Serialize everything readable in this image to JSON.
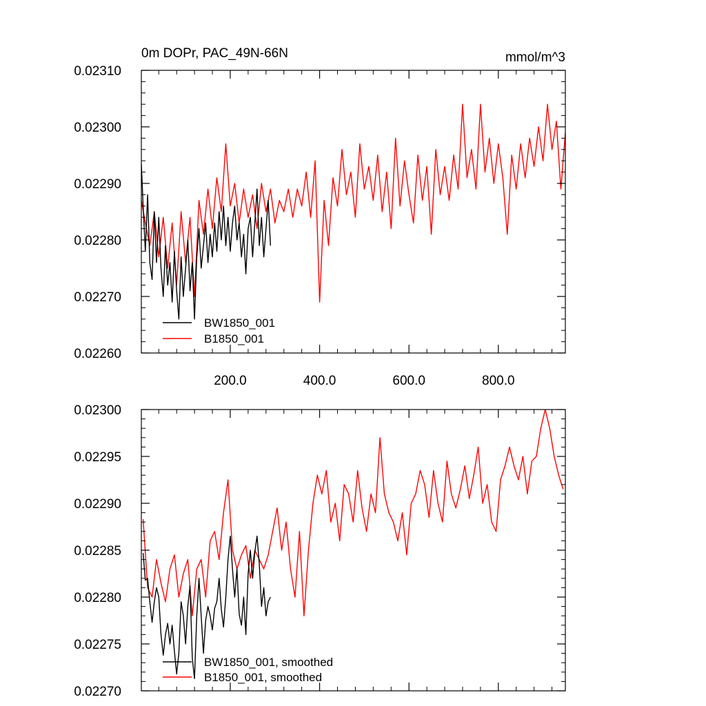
{
  "chart_data": [
    {
      "type": "line",
      "title": "0m DOPr, PAC_49N-66N",
      "units": "mmol/m^3",
      "xlim": [
        1,
        950
      ],
      "ylim": [
        0.0226,
        0.0231
      ],
      "x_ticks": [
        200,
        400,
        600,
        800
      ],
      "x_tick_labels": [
        "200.0",
        "400.0",
        "600.0",
        "800.0"
      ],
      "y_ticks": [
        0.0226,
        0.0227,
        0.0228,
        0.0229,
        0.023,
        0.0231
      ],
      "y_tick_labels": [
        "0.02260",
        "0.02270",
        "0.02280",
        "0.02290",
        "0.02300",
        "0.02310"
      ],
      "legend": {
        "location": "lower-left",
        "entries": [
          "BW1850_001",
          "B1850_001"
        ]
      },
      "series": [
        {
          "name": "BW1850_001",
          "color": "#000000",
          "x": [
            1,
            5,
            10,
            15,
            20,
            25,
            30,
            35,
            40,
            45,
            50,
            55,
            60,
            65,
            70,
            75,
            80,
            85,
            90,
            95,
            100,
            105,
            110,
            115,
            120,
            125,
            130,
            135,
            140,
            145,
            150,
            155,
            160,
            165,
            170,
            175,
            180,
            185,
            190,
            195,
            200,
            205,
            210,
            215,
            220,
            225,
            230,
            235,
            240,
            245,
            250,
            255,
            260,
            265,
            270,
            275,
            280,
            285,
            290
          ],
          "y": [
            0.022935,
            0.02286,
            0.02278,
            0.02288,
            0.02276,
            0.02273,
            0.02285,
            0.02276,
            0.02284,
            0.02275,
            0.0227,
            0.02279,
            0.02272,
            0.02276,
            0.02269,
            0.02278,
            0.02271,
            0.02266,
            0.02277,
            0.0227,
            0.02275,
            0.0228,
            0.02271,
            0.02276,
            0.02266,
            0.02277,
            0.02282,
            0.02275,
            0.02279,
            0.02283,
            0.02276,
            0.02281,
            0.02277,
            0.02283,
            0.02278,
            0.02285,
            0.0228,
            0.02286,
            0.02279,
            0.02284,
            0.02278,
            0.02283,
            0.02286,
            0.0228,
            0.02283,
            0.02277,
            0.02281,
            0.02274,
            0.02282,
            0.02284,
            0.02277,
            0.02283,
            0.02289,
            0.02279,
            0.02284,
            0.02277,
            0.02282,
            0.02287,
            0.02279
          ]
        },
        {
          "name": "B1850_001",
          "color": "#ff0000",
          "x": [
            1,
            10,
            20,
            30,
            40,
            50,
            60,
            70,
            80,
            90,
            100,
            110,
            120,
            130,
            140,
            150,
            160,
            170,
            180,
            190,
            200,
            210,
            220,
            230,
            240,
            250,
            260,
            270,
            280,
            290,
            300,
            310,
            320,
            330,
            340,
            350,
            360,
            370,
            380,
            390,
            400,
            410,
            420,
            430,
            440,
            450,
            460,
            470,
            480,
            490,
            500,
            510,
            520,
            530,
            540,
            550,
            560,
            570,
            580,
            590,
            600,
            610,
            620,
            630,
            640,
            650,
            660,
            670,
            680,
            690,
            700,
            710,
            720,
            730,
            740,
            750,
            760,
            770,
            780,
            790,
            800,
            810,
            820,
            830,
            840,
            850,
            860,
            870,
            880,
            890,
            900,
            910,
            920,
            930,
            940,
            950
          ],
          "y": [
            0.02287,
            0.02283,
            0.02279,
            0.02285,
            0.02277,
            0.02284,
            0.02275,
            0.02283,
            0.02272,
            0.02285,
            0.02276,
            0.02284,
            0.0227,
            0.02287,
            0.02281,
            0.02289,
            0.02282,
            0.02291,
            0.02285,
            0.02297,
            0.02286,
            0.0229,
            0.02283,
            0.02289,
            0.02284,
            0.02288,
            0.02282,
            0.0229,
            0.02285,
            0.02289,
            0.02283,
            0.02287,
            0.02285,
            0.02289,
            0.02284,
            0.02289,
            0.02286,
            0.02292,
            0.02284,
            0.02294,
            0.02269,
            0.02287,
            0.02279,
            0.02291,
            0.02286,
            0.02296,
            0.02288,
            0.02292,
            0.02284,
            0.02297,
            0.02289,
            0.02293,
            0.02287,
            0.02295,
            0.02285,
            0.02292,
            0.02282,
            0.02298,
            0.02286,
            0.02294,
            0.02288,
            0.02283,
            0.02295,
            0.02287,
            0.02293,
            0.02281,
            0.02296,
            0.02288,
            0.02293,
            0.02287,
            0.02295,
            0.02289,
            0.02304,
            0.02291,
            0.02296,
            0.02289,
            0.02304,
            0.02292,
            0.02298,
            0.0229,
            0.02297,
            0.02291,
            0.02281,
            0.02295,
            0.02289,
            0.02297,
            0.02291,
            0.02298,
            0.02293,
            0.023,
            0.02294,
            0.02304,
            0.02296,
            0.02301,
            0.02289,
            0.02299
          ]
        }
      ]
    },
    {
      "type": "line",
      "title": "",
      "xlim": [
        1,
        950
      ],
      "ylim": [
        0.0227,
        0.023
      ],
      "x_ticks": [
        200,
        400,
        600,
        800
      ],
      "y_ticks": [
        0.0227,
        0.02275,
        0.0228,
        0.02285,
        0.0229,
        0.02295,
        0.023
      ],
      "y_tick_labels": [
        "0.02270",
        "0.02275",
        "0.02280",
        "0.02285",
        "0.02290",
        "0.02295",
        "0.02300"
      ],
      "legend": {
        "location": "lower-left",
        "entries": [
          "BW1850_001, smoothed",
          "B1850_001, smoothed"
        ]
      },
      "series": [
        {
          "name": "BW1850_001, smoothed",
          "color": "#000000",
          "x": [
            5,
            10,
            15,
            20,
            25,
            30,
            35,
            40,
            45,
            50,
            55,
            60,
            65,
            70,
            75,
            80,
            85,
            90,
            95,
            100,
            105,
            110,
            115,
            120,
            125,
            130,
            135,
            140,
            145,
            150,
            155,
            160,
            165,
            170,
            175,
            180,
            185,
            190,
            195,
            200,
            205,
            210,
            215,
            220,
            225,
            230,
            235,
            240,
            245,
            250,
            255,
            260,
            265,
            270,
            275,
            280,
            285,
            290
          ],
          "y": [
            0.022847,
            0.022818,
            0.02282,
            0.022795,
            0.022773,
            0.022795,
            0.02281,
            0.0228,
            0.02276,
            0.022738,
            0.02276,
            0.022772,
            0.02275,
            0.02277,
            0.022742,
            0.022718,
            0.02274,
            0.022795,
            0.02278,
            0.02275,
            0.02279,
            0.022812,
            0.022735,
            0.022713,
            0.02278,
            0.02282,
            0.02278,
            0.02274,
            0.022775,
            0.02279,
            0.02278,
            0.022765,
            0.022788,
            0.022795,
            0.02282,
            0.022787,
            0.022768,
            0.0228,
            0.02284,
            0.022865,
            0.02283,
            0.0228,
            0.02283,
            0.022782,
            0.02277,
            0.0228,
            0.02276,
            0.022825,
            0.02285,
            0.02282,
            0.022848,
            0.022865,
            0.022835,
            0.02279,
            0.02281,
            0.02278,
            0.022795,
            0.0228
          ]
        },
        {
          "name": "B1850_001, smoothed",
          "color": "#ff0000",
          "x": [
            5,
            15,
            25,
            35,
            45,
            55,
            65,
            75,
            85,
            95,
            105,
            115,
            125,
            135,
            145,
            155,
            165,
            175,
            185,
            195,
            205,
            215,
            225,
            235,
            245,
            255,
            265,
            275,
            285,
            295,
            305,
            315,
            325,
            335,
            345,
            355,
            365,
            375,
            385,
            395,
            405,
            415,
            425,
            435,
            445,
            455,
            465,
            475,
            485,
            495,
            505,
            515,
            525,
            535,
            545,
            555,
            565,
            575,
            585,
            595,
            605,
            615,
            625,
            635,
            645,
            655,
            665,
            675,
            685,
            695,
            705,
            715,
            725,
            735,
            745,
            755,
            765,
            775,
            785,
            795,
            805,
            815,
            825,
            835,
            845,
            855,
            865,
            875,
            885,
            895,
            905,
            915,
            925,
            935,
            945
          ],
          "y": [
            0.022883,
            0.02281,
            0.0228,
            0.02284,
            0.022815,
            0.022795,
            0.02283,
            0.022845,
            0.0228,
            0.022825,
            0.02284,
            0.02278,
            0.02283,
            0.02284,
            0.0228,
            0.02286,
            0.02287,
            0.02284,
            0.02289,
            0.022925,
            0.02285,
            0.02283,
            0.022845,
            0.022855,
            0.02282,
            0.02285,
            0.02284,
            0.02283,
            0.022845,
            0.02287,
            0.022895,
            0.02285,
            0.02288,
            0.02283,
            0.0228,
            0.02287,
            0.02278,
            0.02285,
            0.0229,
            0.02293,
            0.02291,
            0.022935,
            0.02288,
            0.0229,
            0.02286,
            0.02292,
            0.02291,
            0.02288,
            0.022935,
            0.022895,
            0.02287,
            0.02291,
            0.02289,
            0.02297,
            0.02291,
            0.02289,
            0.02288,
            0.02286,
            0.02289,
            0.022845,
            0.0229,
            0.02291,
            0.022935,
            0.02292,
            0.022885,
            0.022935,
            0.0229,
            0.02288,
            0.022945,
            0.02291,
            0.022895,
            0.022915,
            0.02294,
            0.022905,
            0.02293,
            0.02296,
            0.0229,
            0.02292,
            0.02288,
            0.02287,
            0.022925,
            0.02294,
            0.02296,
            0.02294,
            0.022925,
            0.02295,
            0.02291,
            0.022945,
            0.02295,
            0.02298,
            0.023,
            0.02298,
            0.02295,
            0.02293,
            0.022915
          ]
        }
      ]
    }
  ]
}
